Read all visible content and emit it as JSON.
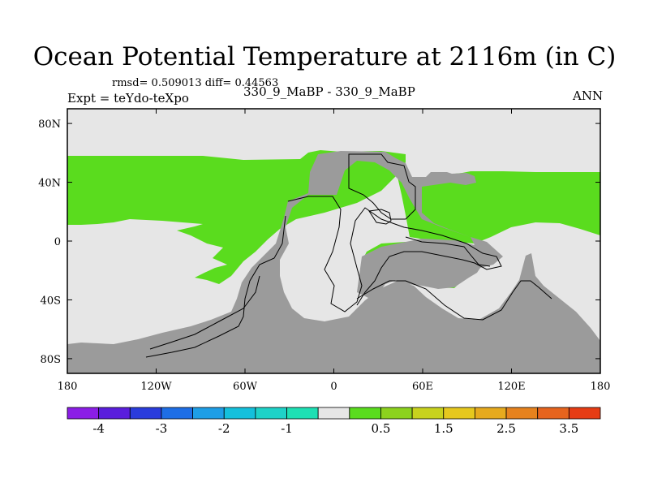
{
  "header": {
    "title": "Ocean Potential Temperature at 2116m (in C)",
    "stats": "rmsd= 0.509013 diff= 0.44563",
    "experiment": "Expt = teYdo-teXpo",
    "case": "330_9_MaBP - 330_9_MaBP",
    "season": "ANN"
  },
  "chart_data": {
    "type": "heatmap",
    "title": "Ocean Potential Temperature at 2116m (in C)",
    "subtitle": "330_9_MaBP - 330_9_MaBP",
    "xlabel": "",
    "ylabel": "",
    "xlim": [
      -180,
      180
    ],
    "ylim": [
      -90,
      90
    ],
    "x_ticks": [
      {
        "value": -180,
        "label": "180"
      },
      {
        "value": -120,
        "label": "120W"
      },
      {
        "value": -60,
        "label": "60W"
      },
      {
        "value": 0,
        "label": "0"
      },
      {
        "value": 60,
        "label": "60E"
      },
      {
        "value": 120,
        "label": "120E"
      },
      {
        "value": 180,
        "label": "180"
      }
    ],
    "y_ticks": [
      {
        "value": 80,
        "label": "80N"
      },
      {
        "value": 40,
        "label": "40N"
      },
      {
        "value": 0,
        "label": "0"
      },
      {
        "value": -40,
        "label": "40S"
      },
      {
        "value": -80,
        "label": "80S"
      }
    ],
    "colorbar": {
      "levels": [
        -4.5,
        -4,
        -3.5,
        -3,
        -2.5,
        -2,
        -1.5,
        -1,
        -0.5,
        0,
        0.5,
        1,
        1.5,
        2,
        2.5,
        3,
        3.5,
        4
      ],
      "labels": [
        {
          "index": 1,
          "label": "-4"
        },
        {
          "index": 3,
          "label": "-3"
        },
        {
          "index": 5,
          "label": "-2"
        },
        {
          "index": 7,
          "label": "-1"
        },
        {
          "index": 10,
          "label": "0.5"
        },
        {
          "index": 12,
          "label": "1.5"
        },
        {
          "index": 14,
          "label": "2.5"
        },
        {
          "index": 16,
          "label": "3.5"
        }
      ],
      "colors": [
        "#8b1ee6",
        "#5a1edc",
        "#2a3cdc",
        "#1e6ee6",
        "#1e9ee6",
        "#14c0dc",
        "#1ed2c8",
        "#1ee0b4",
        "#e6e6e6",
        "#5adc1e",
        "#8cd21e",
        "#c8d21e",
        "#e6c81e",
        "#e6aa1e",
        "#e6821e",
        "#e6641e",
        "#e63c14"
      ]
    },
    "land_color": "#9b9b9b",
    "regions": [
      {
        "name": "north-polar-near-zero",
        "bin": "-0.5 to 0.5",
        "lon": [
          -180,
          180
        ],
        "lat": [
          58,
          90
        ]
      },
      {
        "name": "north-atlantic-pacific-warm-band",
        "bin": "0.5 to 1.0",
        "lon": [
          -180,
          -15
        ],
        "lat": [
          2,
          52
        ]
      },
      {
        "name": "eastern-north-warm-band",
        "bin": "0.5 to 1.0",
        "lon": [
          60,
          180
        ],
        "lat": [
          2,
          40
        ]
      },
      {
        "name": "indian-ocean-warm-patch",
        "bin": "0.5 to 1.0",
        "lon": [
          20,
          95
        ],
        "lat": [
          -30,
          -8
        ]
      },
      {
        "name": "southern-ocean-near-zero",
        "bin": "-0.5 to 0.5",
        "lon": [
          -180,
          180
        ],
        "lat": [
          -80,
          -5
        ]
      }
    ]
  }
}
